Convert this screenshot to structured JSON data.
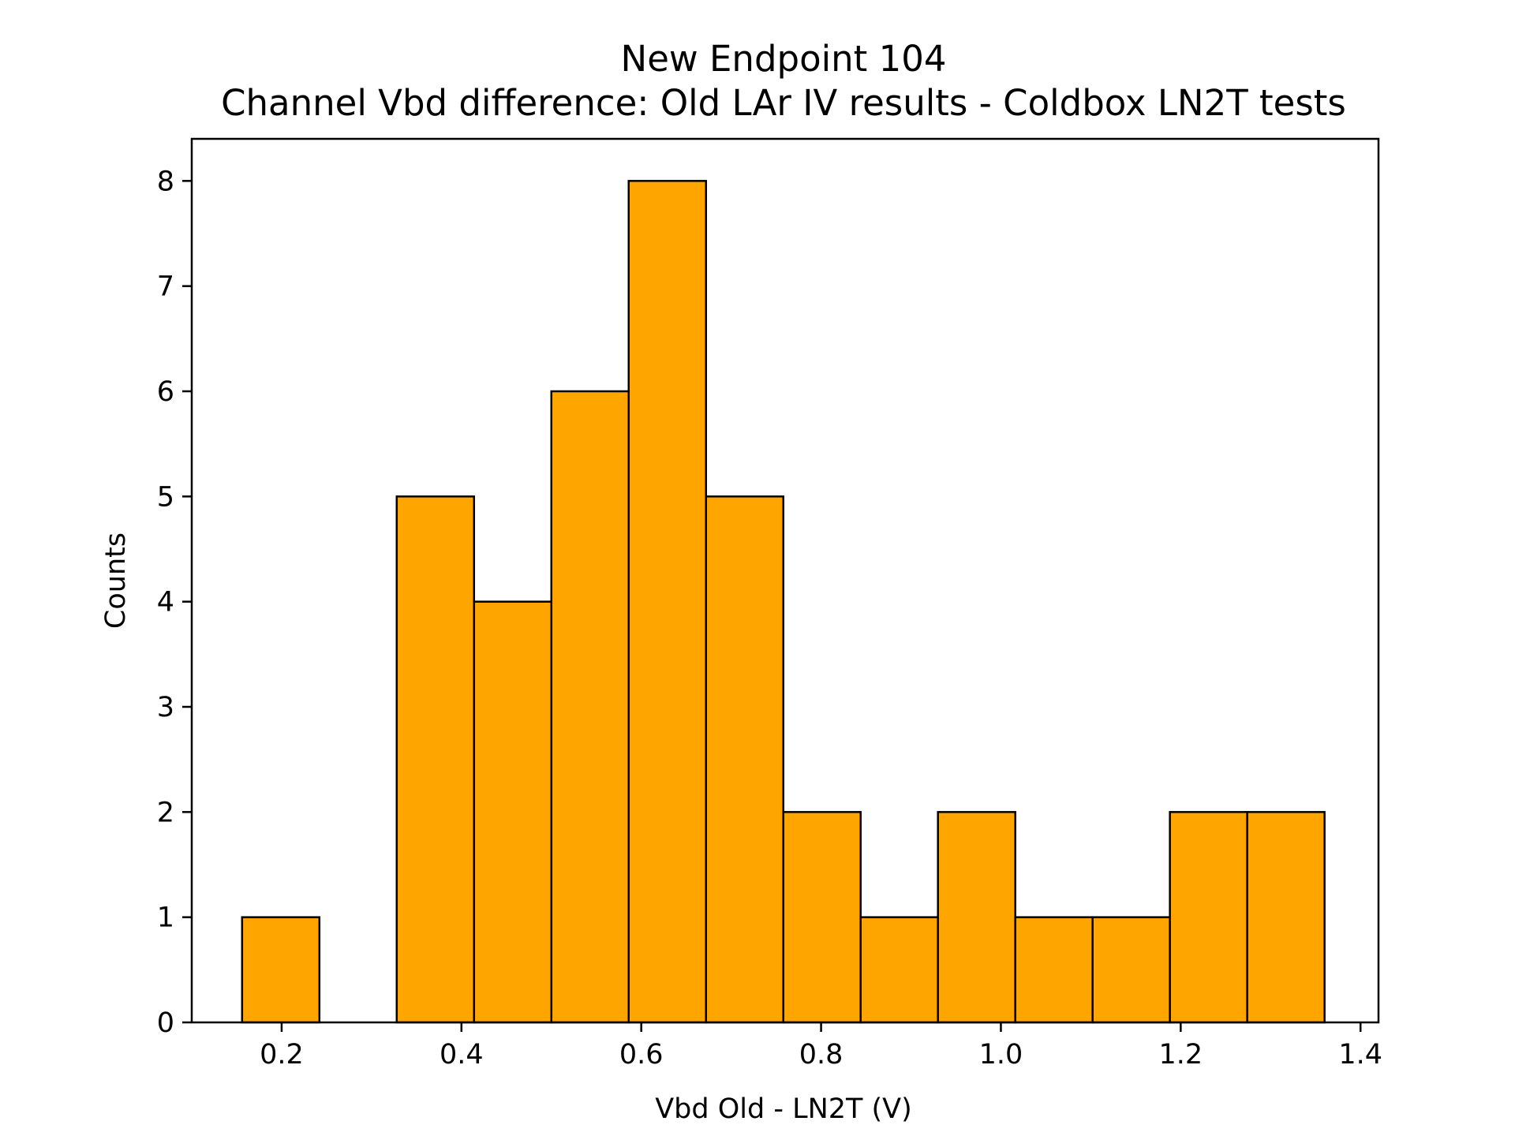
{
  "chart_data": {
    "type": "bar",
    "title": "New Endpoint 104",
    "subtitle": "Channel Vbd difference: Old LAr IV results - Coldbox LN2T tests",
    "xlabel": "Vbd Old - LN2T (V)",
    "ylabel": "Counts",
    "xlim": [
      0.1,
      1.42
    ],
    "ylim": [
      0,
      8.4
    ],
    "xticks": [
      0.2,
      0.4,
      0.6,
      0.8,
      1.0,
      1.2,
      1.4
    ],
    "xtick_labels": [
      "0.2",
      "0.4",
      "0.6",
      "0.8",
      "1.0",
      "1.2",
      "1.4"
    ],
    "yticks": [
      0,
      1,
      2,
      3,
      4,
      5,
      6,
      7,
      8
    ],
    "ytick_labels": [
      "0",
      "1",
      "2",
      "3",
      "4",
      "5",
      "6",
      "7",
      "8"
    ],
    "bin_edges": [
      0.156,
      0.242,
      0.328,
      0.414,
      0.5,
      0.586,
      0.672,
      0.758,
      0.844,
      0.93,
      1.016,
      1.102,
      1.188,
      1.274,
      1.36
    ],
    "counts": [
      1,
      0,
      5,
      4,
      6,
      8,
      5,
      2,
      1,
      2,
      1,
      1,
      2,
      2
    ],
    "grid": false,
    "bar_color": "#ffa500",
    "edge_color": "#000000"
  }
}
